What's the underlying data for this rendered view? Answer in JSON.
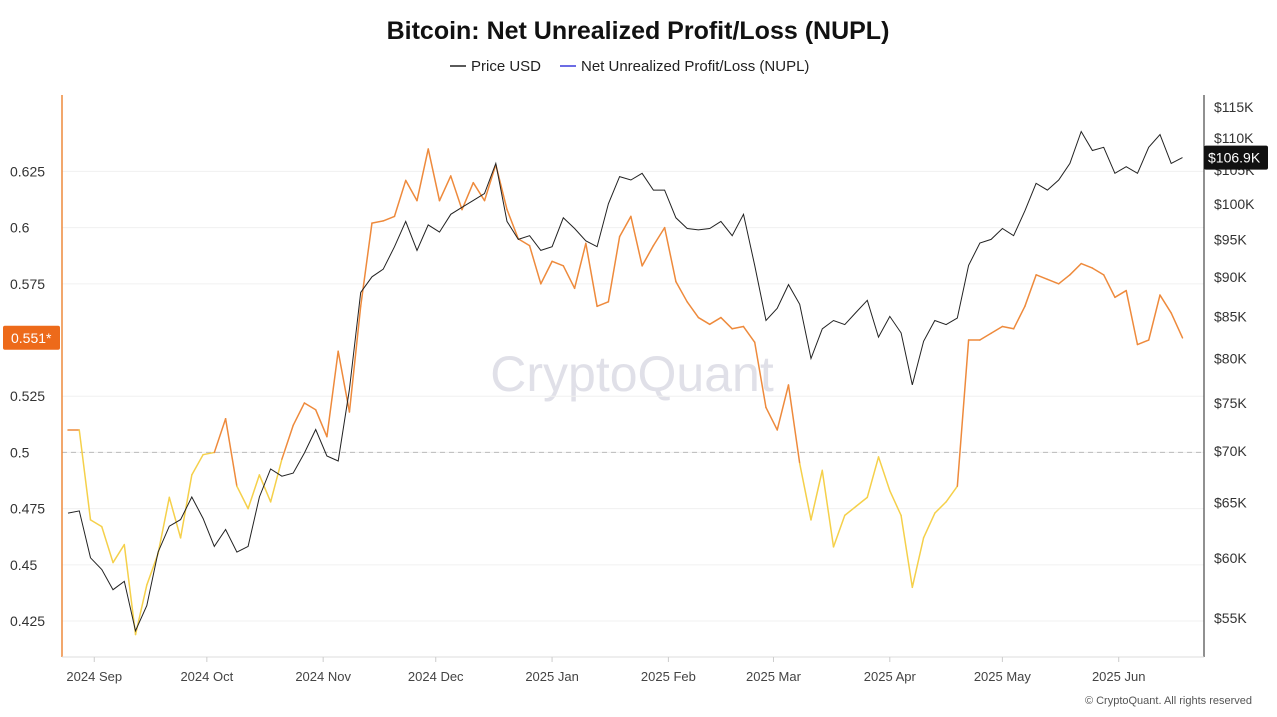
{
  "chart_data": {
    "type": "line",
    "title": "Bitcoin: Net Unrealized Profit/Loss (NUPL)",
    "legend": [
      {
        "name": "Price USD",
        "color": "#222222"
      },
      {
        "name": "Net Unrealized Profit/Loss (NUPL)",
        "color": "#3b3bdb"
      }
    ],
    "legend_position": "top-center",
    "watermark": "CryptoQuant",
    "copyright": "© CryptoQuant. All rights reserved",
    "x_labels": [
      "2024 Sep",
      "2024 Oct",
      "2024 Nov",
      "2024 Dec",
      "2025 Jan",
      "2025 Feb",
      "2025 Mar",
      "2025 Apr",
      "2025 May",
      "2025 Jun"
    ],
    "x_range": [
      "2024-08-25",
      "2025-06-20"
    ],
    "left_axis": {
      "ylim": [
        0.409,
        0.659
      ],
      "ticks": [
        "0.425",
        "0.45",
        "0.475",
        "0.5",
        "0.525",
        "0.575",
        "0.6",
        "0.625"
      ],
      "tick_values": [
        0.425,
        0.45,
        0.475,
        0.5,
        0.525,
        0.575,
        0.6,
        0.625
      ]
    },
    "right_axis": {
      "scale": "log",
      "ylim": [
        52000,
        117000
      ],
      "ticks": [
        "$55K",
        "$60K",
        "$65K",
        "$70K",
        "$75K",
        "$80K",
        "$85K",
        "$90K",
        "$95K",
        "$100K",
        "$105K",
        "$110K",
        "$115K"
      ],
      "tick_values": [
        55000,
        60000,
        65000,
        70000,
        75000,
        80000,
        85000,
        90000,
        95000,
        100000,
        105000,
        110000,
        115000
      ]
    },
    "reference_line": {
      "axis": "left",
      "value": 0.5
    },
    "current_nupl_label": "0.551*",
    "current_nupl_value": 0.551,
    "current_price_label": "$106.9K",
    "current_price_value": 106900,
    "nupl_color_low": "#f5d04a",
    "nupl_color_high": "#ee8a3c",
    "nupl_threshold": 0.5,
    "badge_color_left": "#ed6a1a",
    "badge_color_right": "#111111",
    "series": [
      {
        "name": "Net Unrealized Profit/Loss (NUPL)",
        "axis": "left",
        "x": [
          "2024-08-25",
          "2024-08-28",
          "2024-08-31",
          "2024-09-03",
          "2024-09-06",
          "2024-09-09",
          "2024-09-12",
          "2024-09-15",
          "2024-09-18",
          "2024-09-21",
          "2024-09-24",
          "2024-09-27",
          "2024-09-30",
          "2024-10-03",
          "2024-10-06",
          "2024-10-09",
          "2024-10-12",
          "2024-10-15",
          "2024-10-18",
          "2024-10-21",
          "2024-10-24",
          "2024-10-27",
          "2024-10-30",
          "2024-11-02",
          "2024-11-05",
          "2024-11-08",
          "2024-11-11",
          "2024-11-14",
          "2024-11-17",
          "2024-11-20",
          "2024-11-23",
          "2024-11-26",
          "2024-11-29",
          "2024-12-02",
          "2024-12-05",
          "2024-12-08",
          "2024-12-11",
          "2024-12-14",
          "2024-12-17",
          "2024-12-20",
          "2024-12-23",
          "2024-12-26",
          "2024-12-29",
          "2025-01-01",
          "2025-01-04",
          "2025-01-07",
          "2025-01-10",
          "2025-01-13",
          "2025-01-16",
          "2025-01-19",
          "2025-01-22",
          "2025-01-25",
          "2025-01-28",
          "2025-01-31",
          "2025-02-03",
          "2025-02-06",
          "2025-02-09",
          "2025-02-12",
          "2025-02-15",
          "2025-02-18",
          "2025-02-21",
          "2025-02-24",
          "2025-02-27",
          "2025-03-02",
          "2025-03-05",
          "2025-03-08",
          "2025-03-11",
          "2025-03-14",
          "2025-03-17",
          "2025-03-20",
          "2025-03-23",
          "2025-03-26",
          "2025-03-29",
          "2025-04-01",
          "2025-04-04",
          "2025-04-07",
          "2025-04-10",
          "2025-04-13",
          "2025-04-16",
          "2025-04-19",
          "2025-04-22",
          "2025-04-25",
          "2025-04-28",
          "2025-05-01",
          "2025-05-04",
          "2025-05-07",
          "2025-05-10",
          "2025-05-13",
          "2025-05-16",
          "2025-05-19",
          "2025-05-22",
          "2025-05-25",
          "2025-05-28",
          "2025-05-31",
          "2025-06-03",
          "2025-06-06",
          "2025-06-09",
          "2025-06-12",
          "2025-06-15",
          "2025-06-18"
        ],
        "values": [
          0.51,
          0.51,
          0.47,
          0.467,
          0.451,
          0.459,
          0.419,
          0.441,
          0.455,
          0.48,
          0.462,
          0.49,
          0.499,
          0.5,
          0.515,
          0.485,
          0.475,
          0.49,
          0.478,
          0.497,
          0.512,
          0.522,
          0.519,
          0.507,
          0.545,
          0.518,
          0.565,
          0.602,
          0.603,
          0.605,
          0.621,
          0.612,
          0.635,
          0.612,
          0.623,
          0.608,
          0.62,
          0.612,
          0.628,
          0.608,
          0.595,
          0.592,
          0.575,
          0.585,
          0.583,
          0.573,
          0.593,
          0.565,
          0.567,
          0.596,
          0.605,
          0.583,
          0.592,
          0.6,
          0.576,
          0.567,
          0.56,
          0.557,
          0.56,
          0.555,
          0.556,
          0.549,
          0.52,
          0.51,
          0.53,
          0.495,
          0.47,
          0.492,
          0.458,
          0.472,
          0.476,
          0.48,
          0.498,
          0.483,
          0.472,
          0.44,
          0.462,
          0.473,
          0.478,
          0.485,
          0.55,
          0.55,
          0.553,
          0.556,
          0.555,
          0.565,
          0.579,
          0.577,
          0.575,
          0.579,
          0.584,
          0.582,
          0.579,
          0.569,
          0.572,
          0.548,
          0.55,
          0.57,
          0.562,
          0.551
        ]
      },
      {
        "name": "Price USD",
        "axis": "right",
        "x": [
          "2024-08-25",
          "2024-08-28",
          "2024-08-31",
          "2024-09-03",
          "2024-09-06",
          "2024-09-09",
          "2024-09-12",
          "2024-09-15",
          "2024-09-18",
          "2024-09-21",
          "2024-09-24",
          "2024-09-27",
          "2024-09-30",
          "2024-10-03",
          "2024-10-06",
          "2024-10-09",
          "2024-10-12",
          "2024-10-15",
          "2024-10-18",
          "2024-10-21",
          "2024-10-24",
          "2024-10-27",
          "2024-10-30",
          "2024-11-02",
          "2024-11-05",
          "2024-11-08",
          "2024-11-11",
          "2024-11-14",
          "2024-11-17",
          "2024-11-20",
          "2024-11-23",
          "2024-11-26",
          "2024-11-29",
          "2024-12-02",
          "2024-12-05",
          "2024-12-08",
          "2024-12-11",
          "2024-12-14",
          "2024-12-17",
          "2024-12-20",
          "2024-12-23",
          "2024-12-26",
          "2024-12-29",
          "2025-01-01",
          "2025-01-04",
          "2025-01-07",
          "2025-01-10",
          "2025-01-13",
          "2025-01-16",
          "2025-01-19",
          "2025-01-22",
          "2025-01-25",
          "2025-01-28",
          "2025-01-31",
          "2025-02-03",
          "2025-02-06",
          "2025-02-09",
          "2025-02-12",
          "2025-02-15",
          "2025-02-18",
          "2025-02-21",
          "2025-02-24",
          "2025-02-27",
          "2025-03-02",
          "2025-03-05",
          "2025-03-08",
          "2025-03-11",
          "2025-03-14",
          "2025-03-17",
          "2025-03-20",
          "2025-03-23",
          "2025-03-26",
          "2025-03-29",
          "2025-04-01",
          "2025-04-04",
          "2025-04-07",
          "2025-04-10",
          "2025-04-13",
          "2025-04-16",
          "2025-04-19",
          "2025-04-22",
          "2025-04-25",
          "2025-04-28",
          "2025-05-01",
          "2025-05-04",
          "2025-05-07",
          "2025-05-10",
          "2025-05-13",
          "2025-05-16",
          "2025-05-19",
          "2025-05-22",
          "2025-05-25",
          "2025-05-28",
          "2025-05-31",
          "2025-06-03",
          "2025-06-06",
          "2025-06-09",
          "2025-06-12",
          "2025-06-15",
          "2025-06-18"
        ],
        "values": [
          64000,
          64200,
          60000,
          59000,
          57300,
          58000,
          54000,
          56000,
          60500,
          62800,
          63400,
          65500,
          63500,
          61000,
          62500,
          60500,
          61000,
          65500,
          68200,
          67500,
          67800,
          69800,
          72200,
          69500,
          69000,
          76500,
          88000,
          90000,
          91000,
          94000,
          97500,
          93500,
          97000,
          96000,
          98500,
          99500,
          100500,
          101500,
          106000,
          97500,
          95000,
          95500,
          93500,
          94000,
          98000,
          96500,
          94800,
          94000,
          100000,
          104000,
          103500,
          104500,
          102000,
          102000,
          98000,
          96500,
          96300,
          96500,
          97500,
          95500,
          98500,
          91500,
          84500,
          86000,
          89000,
          86500,
          80000,
          83500,
          84500,
          84000,
          85500,
          87000,
          82500,
          85000,
          83000,
          77000,
          82000,
          84500,
          84000,
          84800,
          91500,
          94500,
          95000,
          96500,
          95500,
          99000,
          103000,
          102000,
          103500,
          106000,
          111000,
          108000,
          108500,
          104500,
          105500,
          104500,
          108500,
          110500,
          106000,
          106900
        ]
      }
    ]
  }
}
